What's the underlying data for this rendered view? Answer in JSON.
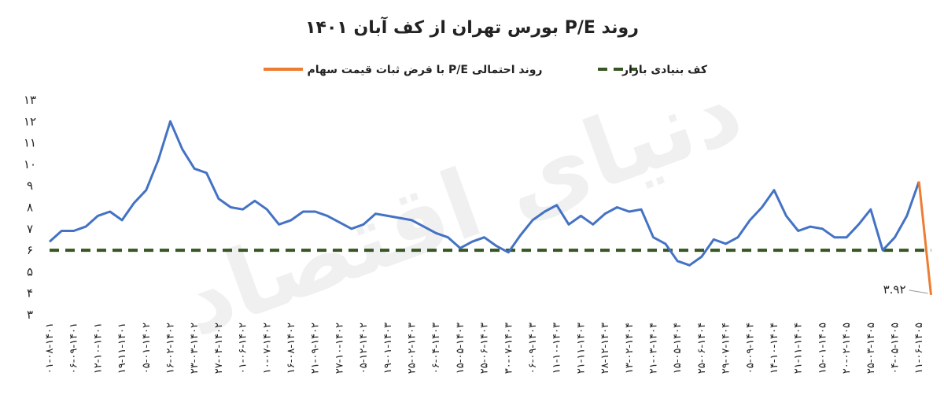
{
  "chart_data": {
    "type": "line",
    "title": "روند P/E بورس تهران از کف آبان ۱۴۰۱",
    "watermark": "دنیای اقتصاد",
    "categories": [
      "۰۱-۰۸-۱۴۰۱",
      null,
      "۰۶-۰۹-۱۴۰۱",
      null,
      "۱۲-۱۰-۱۴۰۱",
      null,
      "۱۹-۱۱-۱۴۰۱",
      null,
      "۰۵-۰۱-۱۴۰۲",
      null,
      "۱۶-۰۲-۱۴۰۲",
      null,
      "۲۳-۰۳-۱۴۰۲",
      null,
      "۲۷-۰۴-۱۴۰۲",
      null,
      "۰۱-۰۶-۱۴۰۲",
      null,
      "۱۰-۰۷-۱۴۰۲",
      null,
      "۱۶-۰۸-۱۴۰۲",
      null,
      "۲۱-۰۹-۱۴۰۲",
      null,
      "۲۷-۱۰-۱۴۰۲",
      null,
      "۰۵-۱۲-۱۴۰۲",
      null,
      "۱۹-۰۱-۱۴۰۳",
      null,
      "۲۵-۰۲-۱۴۰۳",
      null,
      "۰۶-۰۴-۱۴۰۳",
      null,
      "۱۵-۰۵-۱۴۰۳",
      null,
      "۲۵-۰۶-۱۴۰۳",
      null,
      "۳۰-۰۷-۱۴۰۳",
      null,
      "۰۶-۰۹-۱۴۰۳",
      null,
      "۱۱-۱۰-۱۴۰۳",
      null,
      "۲۱-۱۱-۱۴۰۳",
      null,
      "۲۸-۱۲-۱۴۰۳",
      null,
      "۱۳-۰۲-۱۴۰۴",
      null,
      "۲۱-۰۳-۱۴۰۴",
      null,
      "۱۵-۰۵-۱۴۰۴",
      null,
      "۲۵-۰۶-۱۴۰۴",
      null,
      "۲۹-۰۷-۱۴۰۴",
      null,
      "۰۵-۰۹-۱۴۰۴",
      null,
      "۱۴-۱۰-۱۴۰۴",
      null,
      "۲۱-۱۱-۱۴۰۴",
      null,
      "۱۵-۰۱-۱۴۰۵",
      null,
      "۲۰-۰۲-۱۴۰۵",
      null,
      "۲۵-۰۳-۱۴۰۵",
      null,
      "۰۴-۰۵-۱۴۰۵",
      null,
      "۱۱-۰۶-۱۴۰۵",
      null
    ],
    "series": [
      {
        "name": null,
        "color": "#4472c4",
        "values": [
          6.4,
          6.9,
          6.9,
          7.1,
          7.6,
          7.8,
          7.4,
          8.2,
          8.8,
          10.2,
          12.0,
          10.7,
          9.8,
          9.6,
          8.4,
          8.0,
          7.9,
          8.3,
          7.9,
          7.2,
          7.4,
          7.8,
          7.8,
          7.6,
          7.3,
          7.0,
          7.2,
          7.7,
          7.6,
          7.5,
          7.4,
          7.1,
          6.8,
          6.6,
          6.1,
          6.4,
          6.6,
          6.2,
          5.9,
          6.7,
          7.4,
          7.8,
          8.1,
          7.2,
          7.6,
          7.2,
          7.7,
          8.0,
          7.8,
          7.9,
          6.6,
          6.3,
          5.5,
          5.3,
          5.7,
          6.5,
          6.3,
          6.6,
          7.4,
          8.0,
          8.8,
          7.6,
          6.9,
          7.1,
          7.0,
          6.6,
          6.6,
          7.2,
          7.9,
          6.0,
          6.6,
          7.6,
          9.2,
          null
        ]
      },
      {
        "name": "روند احتمالی P/E با فرض ثبات قیمت سهام",
        "color": "#ed7d31",
        "values": [
          null,
          null,
          null,
          null,
          null,
          null,
          null,
          null,
          null,
          null,
          null,
          null,
          null,
          null,
          null,
          null,
          null,
          null,
          null,
          null,
          null,
          null,
          null,
          null,
          null,
          null,
          null,
          null,
          null,
          null,
          null,
          null,
          null,
          null,
          null,
          null,
          null,
          null,
          null,
          null,
          null,
          null,
          null,
          null,
          null,
          null,
          null,
          null,
          null,
          null,
          null,
          null,
          null,
          null,
          null,
          null,
          null,
          null,
          null,
          null,
          null,
          null,
          null,
          null,
          null,
          null,
          null,
          null,
          null,
          null,
          null,
          null,
          9.2,
          3.92
        ],
        "value_labels": [
          null,
          null,
          null,
          null,
          null,
          null,
          null,
          null,
          null,
          null,
          null,
          null,
          null,
          null,
          null,
          null,
          null,
          null,
          null,
          null,
          null,
          null,
          null,
          null,
          null,
          null,
          null,
          null,
          null,
          null,
          null,
          null,
          null,
          null,
          null,
          null,
          null,
          null,
          null,
          null,
          null,
          null,
          null,
          null,
          null,
          null,
          null,
          null,
          null,
          null,
          null,
          null,
          null,
          null,
          null,
          null,
          null,
          null,
          null,
          null,
          null,
          null,
          null,
          null,
          null,
          null,
          null,
          null,
          null,
          null,
          null,
          null,
          null,
          "۳.۹۲"
        ]
      },
      {
        "name": "کف بنیادی بازار",
        "color": "#375623",
        "dashed": true,
        "values": [
          6,
          6,
          6,
          6,
          6,
          6,
          6,
          6,
          6,
          6,
          6,
          6,
          6,
          6,
          6,
          6,
          6,
          6,
          6,
          6,
          6,
          6,
          6,
          6,
          6,
          6,
          6,
          6,
          6,
          6,
          6,
          6,
          6,
          6,
          6,
          6,
          6,
          6,
          6,
          6,
          6,
          6,
          6,
          6,
          6,
          6,
          6,
          6,
          6,
          6,
          6,
          6,
          6,
          6,
          6,
          6,
          6,
          6,
          6,
          6,
          6,
          6,
          6,
          6,
          6,
          6,
          6,
          6,
          6,
          6,
          6,
          6,
          6,
          6
        ]
      }
    ],
    "ylim": [
      3,
      13
    ],
    "yticks": [
      {
        "value": 3,
        "label": "۳"
      },
      {
        "value": 4,
        "label": "۴"
      },
      {
        "value": 5,
        "label": "۵"
      },
      {
        "value": 6,
        "label": "۶"
      },
      {
        "value": 7,
        "label": "۷"
      },
      {
        "value": 8,
        "label": "۸"
      },
      {
        "value": 9,
        "label": "۹"
      },
      {
        "value": 10,
        "label": "۱۰"
      },
      {
        "value": 11,
        "label": "۱۱"
      },
      {
        "value": 12,
        "label": "۱۲"
      },
      {
        "value": 13,
        "label": "۱۳"
      }
    ],
    "grid": false
  }
}
